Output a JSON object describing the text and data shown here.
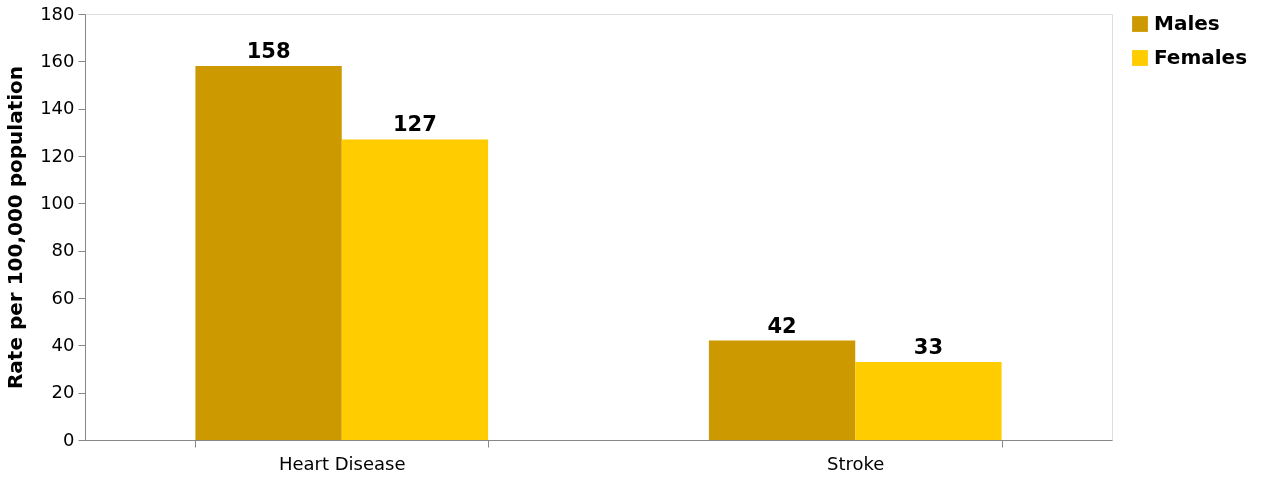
{
  "chart_data": {
    "type": "bar",
    "ylabel": "Rate per 100,000 population",
    "categories": [
      "Heart Disease",
      "Stroke"
    ],
    "series": [
      {
        "name": "Males",
        "color": "#cc9900",
        "values": [
          158,
          42
        ]
      },
      {
        "name": "Females",
        "color": "#ffcc00",
        "values": [
          127,
          33
        ]
      }
    ],
    "ylim": [
      0,
      180
    ],
    "yticks": [
      0,
      20,
      40,
      60,
      80,
      100,
      120,
      140,
      160,
      180
    ],
    "data_labels": true,
    "legend": "right",
    "grid": false
  }
}
